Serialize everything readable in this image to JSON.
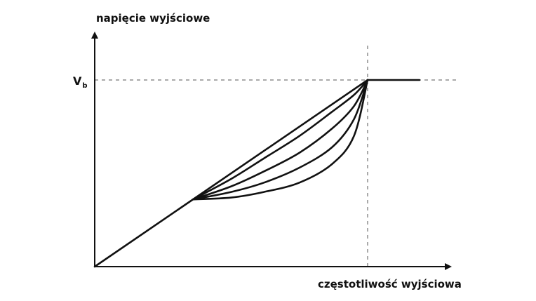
{
  "chart_data": {
    "type": "line",
    "title": "",
    "ylabel": "napięcie wyjściowe",
    "xlabel": "częstotliwość wyjściowa",
    "xlim": [
      0,
      1.33
    ],
    "ylim": [
      0,
      1.32
    ],
    "y_ticks": [
      {
        "value": 1,
        "label": "V",
        "subscript": "b"
      }
    ],
    "reference_lines": [
      {
        "orientation": "horizontal",
        "value": 1,
        "style": "dashed"
      },
      {
        "orientation": "vertical",
        "value": 1,
        "style": "dashed"
      }
    ],
    "grid": false,
    "legend": "none",
    "series": [
      {
        "points": [
          {
            "x": 0,
            "y": 0
          },
          {
            "x": 1,
            "y": 1
          },
          {
            "x": 1.19,
            "y": 1
          }
        ]
      },
      {
        "points": [
          {
            "x": 0.36,
            "y": 0.36
          },
          {
            "x": 0.5,
            "y": 0.47
          },
          {
            "x": 0.62,
            "y": 0.58
          },
          {
            "x": 0.75,
            "y": 0.7
          },
          {
            "x": 0.87,
            "y": 0.83
          },
          {
            "x": 0.95,
            "y": 0.92
          },
          {
            "x": 1,
            "y": 1
          }
        ]
      },
      {
        "points": [
          {
            "x": 0.36,
            "y": 0.36
          },
          {
            "x": 0.5,
            "y": 0.43
          },
          {
            "x": 0.62,
            "y": 0.51
          },
          {
            "x": 0.75,
            "y": 0.61
          },
          {
            "x": 0.87,
            "y": 0.74
          },
          {
            "x": 0.95,
            "y": 0.86
          },
          {
            "x": 1,
            "y": 1
          }
        ]
      },
      {
        "points": [
          {
            "x": 0.36,
            "y": 0.36
          },
          {
            "x": 0.5,
            "y": 0.4
          },
          {
            "x": 0.62,
            "y": 0.45
          },
          {
            "x": 0.75,
            "y": 0.53
          },
          {
            "x": 0.87,
            "y": 0.64
          },
          {
            "x": 0.95,
            "y": 0.79
          },
          {
            "x": 1,
            "y": 1
          }
        ]
      },
      {
        "points": [
          {
            "x": 0.36,
            "y": 0.36
          },
          {
            "x": 0.5,
            "y": 0.37
          },
          {
            "x": 0.62,
            "y": 0.4
          },
          {
            "x": 0.75,
            "y": 0.45
          },
          {
            "x": 0.87,
            "y": 0.55
          },
          {
            "x": 0.95,
            "y": 0.7
          },
          {
            "x": 1,
            "y": 1
          }
        ]
      }
    ]
  }
}
